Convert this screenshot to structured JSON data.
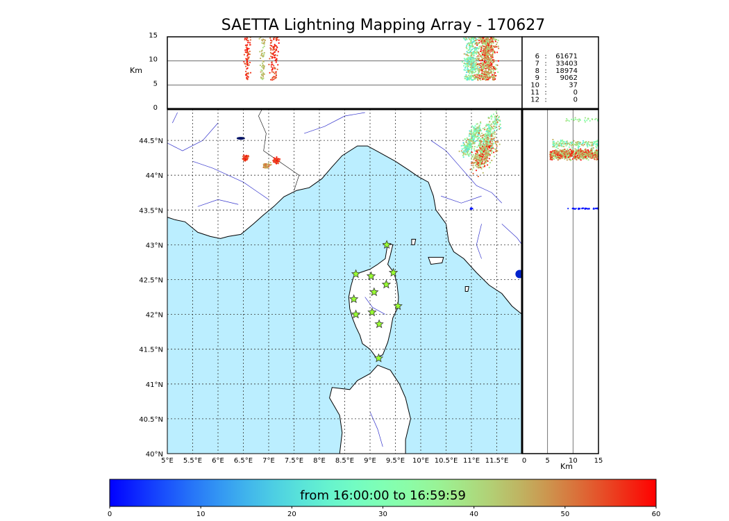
{
  "title": "SAETTA Lightning Mapping Array - 170627",
  "colorbar": {
    "label": "from 16:00:00 to 16:59:59",
    "ticks": [
      "0",
      "10",
      "20",
      "30",
      "40",
      "50",
      "60"
    ],
    "range": [
      0,
      60
    ],
    "colormap": "rainbow"
  },
  "top_panel": {
    "ylabel": "Km",
    "yticks": [
      "0",
      "5",
      "10",
      "15"
    ],
    "yrange": [
      0,
      15
    ]
  },
  "side_panel": {
    "xlabel": "Km",
    "xticks": [
      "0",
      "5",
      "10",
      "15"
    ],
    "xrange": [
      0,
      15
    ]
  },
  "map": {
    "lon_range": [
      5.0,
      12.0
    ],
    "lat_range": [
      40.0,
      44.95
    ],
    "lon_ticks": [
      "5°E",
      "5.5°E",
      "6°E",
      "6.5°E",
      "7°E",
      "7.5°E",
      "8°E",
      "8.5°E",
      "9°E",
      "9.5°E",
      "10°E",
      "10.5°E",
      "11°E",
      "11.5°E"
    ],
    "lat_ticks": [
      "40°N",
      "40.5°N",
      "41°N",
      "41.5°N",
      "42°N",
      "42.5°N",
      "43°N",
      "43.5°N",
      "44°N",
      "44.5°N"
    ],
    "sea_color": "#bbeeff",
    "land_color": "#ffffff",
    "coast_color": "#000000",
    "river_color": "#3333cc",
    "grid": true,
    "stations_lonlat": [
      [
        9.33,
        43.0
      ],
      [
        8.72,
        42.58
      ],
      [
        9.02,
        42.55
      ],
      [
        9.46,
        42.6
      ],
      [
        9.32,
        42.43
      ],
      [
        9.08,
        42.32
      ],
      [
        8.68,
        42.22
      ],
      [
        8.72,
        42.0
      ],
      [
        9.04,
        42.03
      ],
      [
        9.55,
        42.12
      ],
      [
        9.18,
        41.86
      ],
      [
        9.17,
        41.37
      ]
    ],
    "station_color": "#99ff33"
  },
  "stats": [
    {
      "k": "6",
      "v": "61671",
      "color": "#000000"
    },
    {
      "k": "7",
      "v": "33403",
      "color": "#ff0000"
    },
    {
      "k": "8",
      "v": "18974",
      "color": "#000000"
    },
    {
      "k": "9",
      "v": "9062",
      "color": "#000000"
    },
    {
      "k": "10",
      "v": "37",
      "color": "#000000"
    },
    {
      "k": "11",
      "v": "0",
      "color": "#000000"
    },
    {
      "k": "12",
      "v": "0",
      "color": "#000000"
    }
  ]
}
